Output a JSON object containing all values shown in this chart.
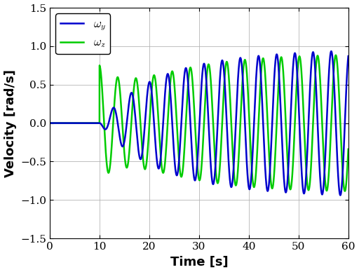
{
  "title": "",
  "xlabel": "Time [s]",
  "ylabel": "Velocity [rad/s]",
  "xlim": [
    0,
    60
  ],
  "ylim": [
    -1.5,
    1.5
  ],
  "xticks": [
    0,
    10,
    20,
    30,
    40,
    50,
    60
  ],
  "yticks": [
    -1.5,
    -1.0,
    -0.5,
    0.0,
    0.5,
    1.0,
    1.5
  ],
  "blue_color": "#0000CD",
  "green_color": "#00CC00",
  "blue_label": "$\\omega_y$",
  "green_label": "$\\omega_z$",
  "t_start": 10.0,
  "background_color": "#ffffff",
  "grid_color": "#b0b0b0",
  "linewidth": 1.8,
  "figsize": [
    5.12,
    3.88
  ],
  "dpi": 100,
  "freq": 1.72,
  "blue_amp_max": 0.72,
  "blue_tau_grow": 10.0,
  "green_amp_init": 0.75,
  "green_tau_init": 5.0,
  "green_amp_grow": 0.9,
  "green_tau_grow": 12.0
}
